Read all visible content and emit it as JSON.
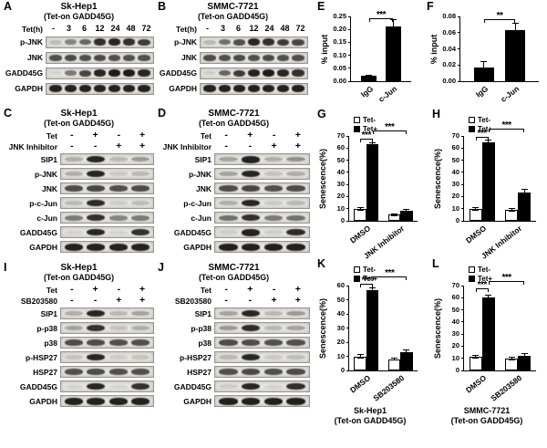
{
  "figure": {
    "background": "#ffffff",
    "band_color": "#14110f",
    "axis_color": "#000000"
  },
  "blot_panels": [
    {
      "id": "A",
      "label": "A",
      "title": "Sk-Hep1",
      "subtitle": "(Tet-on GADD45G)",
      "headers": [
        {
          "label": "Tet(h)",
          "values": [
            "-",
            "3",
            "6",
            "12",
            "24",
            "48",
            "72"
          ]
        }
      ],
      "rows": [
        {
          "label": "p-JNK",
          "bands": [
            0.18,
            0.45,
            0.6,
            0.85,
            0.9,
            0.85,
            0.8
          ]
        },
        {
          "label": "JNK",
          "bands": [
            0.7,
            0.72,
            0.7,
            0.72,
            0.7,
            0.7,
            0.7
          ]
        },
        {
          "label": "GADD45G",
          "bands": [
            0.08,
            0.5,
            0.75,
            0.9,
            0.95,
            0.95,
            0.9
          ]
        },
        {
          "label": "GAPDH",
          "bands": [
            0.92,
            0.92,
            0.92,
            0.92,
            0.92,
            0.92,
            0.92
          ]
        }
      ]
    },
    {
      "id": "B",
      "label": "B",
      "title": "SMMC-7721",
      "subtitle": "(Tet-on GADD45G)",
      "headers": [
        {
          "label": "Tet(h)",
          "values": [
            "-",
            "3",
            "6",
            "12",
            "24",
            "48",
            "72"
          ]
        }
      ],
      "rows": [
        {
          "label": "p-JNK",
          "bands": [
            0.2,
            0.55,
            0.7,
            0.9,
            0.85,
            0.8,
            0.75
          ]
        },
        {
          "label": "JNK",
          "bands": [
            0.72,
            0.7,
            0.73,
            0.7,
            0.72,
            0.7,
            0.7
          ]
        },
        {
          "label": "GADD45G",
          "bands": [
            0.1,
            0.6,
            0.8,
            0.92,
            0.95,
            0.9,
            0.85
          ]
        },
        {
          "label": "GAPDH",
          "bands": [
            0.93,
            0.93,
            0.93,
            0.93,
            0.93,
            0.93,
            0.93
          ]
        }
      ]
    },
    {
      "id": "C",
      "label": "C",
      "title": "Sk-Hep1",
      "subtitle": "(Tet-on GADD45G)",
      "headers": [
        {
          "label": "Tet",
          "values": [
            "-",
            "+",
            "-",
            "+"
          ]
        },
        {
          "label": "JNK Inhibitor",
          "values": [
            "-",
            "-",
            "+",
            "+"
          ]
        }
      ],
      "rows": [
        {
          "label": "SIP1",
          "bands": [
            0.25,
            0.9,
            0.2,
            0.35
          ]
        },
        {
          "label": "p-JNK",
          "bands": [
            0.25,
            0.9,
            0.12,
            0.2
          ]
        },
        {
          "label": "JNK",
          "bands": [
            0.72,
            0.75,
            0.7,
            0.72
          ]
        },
        {
          "label": "p-c-Jun",
          "bands": [
            0.2,
            0.88,
            0.1,
            0.18
          ]
        },
        {
          "label": "c-Jun",
          "bands": [
            0.5,
            0.85,
            0.45,
            0.5
          ]
        },
        {
          "label": "GADD45G",
          "bands": [
            0.08,
            0.9,
            0.08,
            0.85
          ]
        },
        {
          "label": "GAPDH",
          "bands": [
            0.92,
            0.92,
            0.92,
            0.92
          ]
        }
      ]
    },
    {
      "id": "D",
      "label": "D",
      "title": "SMMC-7721",
      "subtitle": "(Tet-on GADD45G)",
      "headers": [
        {
          "label": "Tet",
          "values": [
            "-",
            "+",
            "-",
            "+"
          ]
        },
        {
          "label": "JNK Inhibitor",
          "values": [
            "-",
            "-",
            "+",
            "+"
          ]
        }
      ],
      "rows": [
        {
          "label": "SIP1",
          "bands": [
            0.3,
            0.92,
            0.25,
            0.4
          ]
        },
        {
          "label": "p-JNK",
          "bands": [
            0.3,
            0.9,
            0.15,
            0.25
          ]
        },
        {
          "label": "JNK",
          "bands": [
            0.72,
            0.75,
            0.7,
            0.72
          ]
        },
        {
          "label": "p-c-Jun",
          "bands": [
            0.25,
            0.9,
            0.12,
            0.2
          ]
        },
        {
          "label": "c-Jun",
          "bands": [
            0.55,
            0.85,
            0.5,
            0.55
          ]
        },
        {
          "label": "GADD45G",
          "bands": [
            0.1,
            0.92,
            0.1,
            0.88
          ]
        },
        {
          "label": "GAPDH",
          "bands": [
            0.93,
            0.93,
            0.93,
            0.93
          ]
        }
      ]
    },
    {
      "id": "I",
      "label": "I",
      "title": "Sk-Hep1",
      "subtitle": "(Tet-on GADD45G)",
      "headers": [
        {
          "label": "Tet",
          "values": [
            "-",
            "+",
            "-",
            "+"
          ]
        },
        {
          "label": "SB203580",
          "values": [
            "-",
            "-",
            "+",
            "+"
          ]
        }
      ],
      "rows": [
        {
          "label": "SIP1",
          "bands": [
            0.25,
            0.9,
            0.2,
            0.3
          ]
        },
        {
          "label": "p-p38",
          "bands": [
            0.3,
            0.85,
            0.15,
            0.25
          ]
        },
        {
          "label": "p38",
          "bands": [
            0.72,
            0.72,
            0.7,
            0.7
          ]
        },
        {
          "label": "p-HSP27",
          "bands": [
            0.15,
            0.9,
            0.1,
            0.15
          ]
        },
        {
          "label": "HSP27",
          "bands": [
            0.7,
            0.72,
            0.7,
            0.7
          ]
        },
        {
          "label": "GADD45G",
          "bands": [
            0.08,
            0.9,
            0.08,
            0.85
          ]
        },
        {
          "label": "GAPDH",
          "bands": [
            0.92,
            0.92,
            0.92,
            0.92
          ]
        }
      ]
    },
    {
      "id": "J",
      "label": "J",
      "title": "SMMC-7721",
      "subtitle": "(Tet-on GADD45G)",
      "headers": [
        {
          "label": "Tet",
          "values": [
            "-",
            "+",
            "-",
            "+"
          ]
        },
        {
          "label": "SB203580",
          "values": [
            "-",
            "-",
            "+",
            "+"
          ]
        }
      ],
      "rows": [
        {
          "label": "SIP1",
          "bands": [
            0.3,
            0.9,
            0.2,
            0.35
          ]
        },
        {
          "label": "p-p38",
          "bands": [
            0.35,
            0.88,
            0.2,
            0.3
          ]
        },
        {
          "label": "p38",
          "bands": [
            0.72,
            0.72,
            0.7,
            0.7
          ]
        },
        {
          "label": "p-HSP27",
          "bands": [
            0.2,
            0.9,
            0.12,
            0.18
          ]
        },
        {
          "label": "HSP27",
          "bands": [
            0.7,
            0.73,
            0.7,
            0.72
          ]
        },
        {
          "label": "GADD45G",
          "bands": [
            0.1,
            0.9,
            0.08,
            0.86
          ]
        },
        {
          "label": "GAPDH",
          "bands": [
            0.93,
            0.93,
            0.93,
            0.93
          ]
        }
      ]
    }
  ],
  "chart_data": [
    {
      "id": "E",
      "panel_label": "E",
      "type": "bar",
      "title": "",
      "xlabel": "",
      "ylabel": "% input",
      "categories": [
        "IgG",
        "c-Jun"
      ],
      "values": [
        0.02,
        0.21
      ],
      "errors": [
        0.005,
        0.03
      ],
      "ylim": [
        0,
        0.25
      ],
      "yticks": [
        "0.00",
        "0.05",
        "0.10",
        "0.15",
        "0.20",
        "0.25"
      ],
      "bar_fill": "#000000",
      "grid": false,
      "sig": [
        {
          "label": "***",
          "from": 0,
          "to": 1,
          "y_pct": 92
        }
      ]
    },
    {
      "id": "F",
      "panel_label": "F",
      "type": "bar",
      "title": "",
      "xlabel": "",
      "ylabel": "% input",
      "categories": [
        "IgG",
        "c-Jun"
      ],
      "values": [
        0.017,
        0.063
      ],
      "errors": [
        0.008,
        0.009
      ],
      "ylim": [
        0,
        0.08
      ],
      "yticks": [
        "0.00",
        "0.02",
        "0.04",
        "0.06",
        "0.08"
      ],
      "bar_fill": "#000000",
      "grid": false,
      "sig": [
        {
          "label": "**",
          "from": 0,
          "to": 1,
          "y_pct": 90
        }
      ]
    },
    {
      "id": "G",
      "panel_label": "G",
      "type": "grouped_bar",
      "title": "",
      "xlabel": "",
      "ylabel": "Senescence(%)",
      "categories": [
        "DMSO",
        "JNK Inhibitor"
      ],
      "series": [
        {
          "name": "Tet-",
          "fill": "#ffffff",
          "values": [
            10,
            5
          ],
          "errors": [
            1.5,
            1
          ]
        },
        {
          "name": "Tet+",
          "fill": "#000000",
          "values": [
            63,
            8
          ],
          "errors": [
            2,
            1.5
          ]
        }
      ],
      "ylim": [
        0,
        70
      ],
      "yticks": [
        "0",
        "10",
        "20",
        "30",
        "40",
        "50",
        "60",
        "70"
      ],
      "grid": false,
      "legend_position": "top",
      "sig": [
        {
          "label": "***",
          "from": 0,
          "to": 1,
          "y_pct": 93
        },
        {
          "label": "***",
          "from": 1,
          "to": 3,
          "y_pct": 102
        }
      ]
    },
    {
      "id": "H",
      "panel_label": "H",
      "type": "grouped_bar",
      "title": "",
      "xlabel": "",
      "ylabel": "Senescence(%)",
      "categories": [
        "DMSO",
        "JNK Inhibitor"
      ],
      "series": [
        {
          "name": "Tet-",
          "fill": "#ffffff",
          "values": [
            10,
            9
          ],
          "errors": [
            1.5,
            1.5
          ]
        },
        {
          "name": "Tet+",
          "fill": "#000000",
          "values": [
            65,
            23
          ],
          "errors": [
            2,
            3
          ]
        }
      ],
      "ylim": [
        0,
        70
      ],
      "yticks": [
        "0",
        "10",
        "20",
        "30",
        "40",
        "50",
        "60",
        "70"
      ],
      "grid": false,
      "legend_position": "top",
      "sig": [
        {
          "label": "***",
          "from": 0,
          "to": 1,
          "y_pct": 95
        },
        {
          "label": "***",
          "from": 1,
          "to": 3,
          "y_pct": 104
        }
      ]
    },
    {
      "id": "K",
      "panel_label": "K",
      "type": "grouped_bar",
      "title": "",
      "xlabel": "",
      "ylabel": "Senescence(%)",
      "caption": [
        "Sk-Hep1",
        "(Tet-on GADD45G)"
      ],
      "categories": [
        "DMSO",
        "SB203580"
      ],
      "series": [
        {
          "name": "Tet-",
          "fill": "#ffffff",
          "values": [
            10,
            8
          ],
          "errors": [
            1.5,
            1
          ]
        },
        {
          "name": "Tet+",
          "fill": "#000000",
          "values": [
            57,
            13
          ],
          "errors": [
            2,
            2
          ]
        }
      ],
      "ylim": [
        0,
        60
      ],
      "yticks": [
        "0",
        "10",
        "20",
        "30",
        "40",
        "50",
        "60"
      ],
      "grid": false,
      "legend_position": "top",
      "sig": [
        {
          "label": "***",
          "from": 0,
          "to": 1,
          "y_pct": 98
        },
        {
          "label": "***",
          "from": 1,
          "to": 3,
          "y_pct": 107
        }
      ]
    },
    {
      "id": "L",
      "panel_label": "L",
      "type": "grouped_bar",
      "title": "",
      "xlabel": "",
      "ylabel": "Senescence(%)",
      "caption": [
        "SMMC-7721",
        "(Tet-on GADD45G)"
      ],
      "categories": [
        "DMSO",
        "SB203580"
      ],
      "series": [
        {
          "name": "Tet-",
          "fill": "#ffffff",
          "values": [
            11,
            10
          ],
          "errors": [
            1.5,
            1.5
          ]
        },
        {
          "name": "Tet+",
          "fill": "#000000",
          "values": [
            60,
            12
          ],
          "errors": [
            2.5,
            2
          ]
        }
      ],
      "ylim": [
        0,
        70
      ],
      "yticks": [
        "0",
        "10",
        "20",
        "30",
        "40",
        "50",
        "60",
        "70"
      ],
      "grid": false,
      "legend_position": "top",
      "sig": [
        {
          "label": "***",
          "from": 0,
          "to": 1,
          "y_pct": 92
        },
        {
          "label": "***",
          "from": 1,
          "to": 3,
          "y_pct": 101
        }
      ]
    }
  ]
}
